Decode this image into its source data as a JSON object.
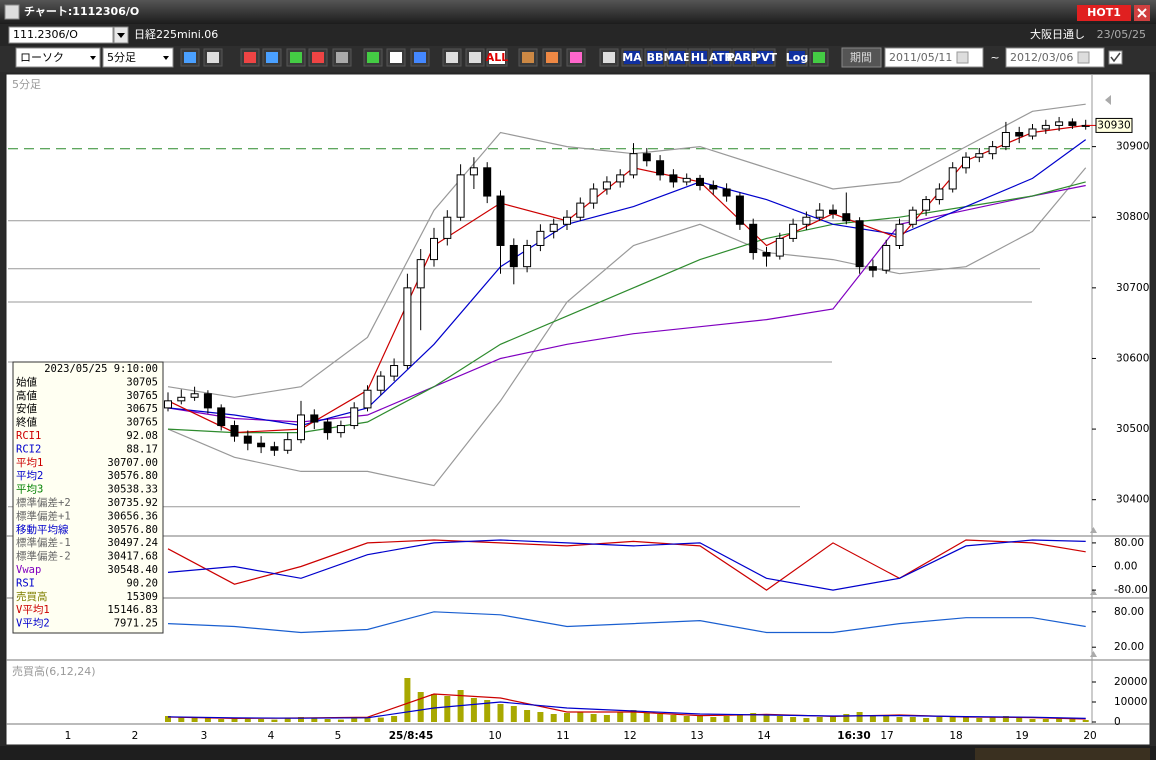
{
  "window": {
    "title": "チャート:1112306/O",
    "hot": "HOT1"
  },
  "toolbar": {
    "symbol": "111.2306/O",
    "instrument": "日経225mini.06",
    "session": "大阪日通し",
    "date": "23/05/25",
    "chart_type": "ローソク",
    "interval": "5分足",
    "buttons": [
      "ALL",
      "MA",
      "BB",
      "MAE",
      "HL",
      "ATR",
      "PARB",
      "PVT",
      "Log"
    ],
    "period": "期間",
    "from": "2011/05/11",
    "tilde": "~",
    "to": "2012/03/06"
  },
  "info_box": {
    "time": "2023/05/25 9:10:00",
    "rows": [
      {
        "label": "始値",
        "value": "30705",
        "color": "#000000"
      },
      {
        "label": "高値",
        "value": "30765",
        "color": "#000000"
      },
      {
        "label": "安値",
        "value": "30675",
        "color": "#000000"
      },
      {
        "label": "終値",
        "value": "30765",
        "color": "#000000"
      },
      {
        "label": "RCI1",
        "value": "92.08",
        "color": "#cc0000"
      },
      {
        "label": "RCI2",
        "value": "88.17",
        "color": "#0000cc"
      },
      {
        "label": "平均1",
        "value": "30707.00",
        "color": "#cc0000"
      },
      {
        "label": "平均2",
        "value": "30576.80",
        "color": "#0000cc"
      },
      {
        "label": "平均3",
        "value": "30538.33",
        "color": "#008000"
      },
      {
        "label": "標準偏差+2",
        "value": "30735.92",
        "color": "#666666"
      },
      {
        "label": "標準偏差+1",
        "value": "30656.36",
        "color": "#666666"
      },
      {
        "label": "移動平均線",
        "value": "30576.80",
        "color": "#0000cc"
      },
      {
        "label": "標準偏差-1",
        "value": "30497.24",
        "color": "#666666"
      },
      {
        "label": "標準偏差-2",
        "value": "30417.68",
        "color": "#666666"
      },
      {
        "label": "Vwap",
        "value": "30548.40",
        "color": "#8000c0"
      },
      {
        "label": "RSI",
        "value": "90.20",
        "color": "#0000cc"
      },
      {
        "label": "売買高",
        "value": "15309",
        "color": "#808000"
      },
      {
        "label": "V平均1",
        "value": "15146.83",
        "color": "#cc0000"
      },
      {
        "label": "V平均2",
        "value": "7971.25",
        "color": "#0000cc"
      }
    ]
  },
  "chart_data": {
    "type": "candlestick",
    "panel_label": "5分足",
    "ylim": [
      30350,
      31000
    ],
    "yticks": [
      30400,
      30500,
      30600,
      30700,
      30800,
      30900
    ],
    "last_price": 30930,
    "dashed_level": 30897,
    "levels": [
      30795,
      30727,
      30680,
      30595,
      30390
    ],
    "x_labels": [
      "1",
      "2",
      "3",
      "4",
      "5",
      "25/8:45",
      "10",
      "11",
      "12",
      "13",
      "14",
      "16:30",
      "17",
      "18",
      "19",
      "20"
    ],
    "candles": [
      [
        30530,
        30552,
        30525,
        30540
      ],
      [
        30540,
        30556,
        30535,
        30545
      ],
      [
        30545,
        30560,
        30540,
        30550
      ],
      [
        30550,
        30555,
        30522,
        30530
      ],
      [
        30530,
        30535,
        30498,
        30505
      ],
      [
        30505,
        30512,
        30482,
        30490
      ],
      [
        30490,
        30498,
        30470,
        30480
      ],
      [
        30480,
        30490,
        30466,
        30475
      ],
      [
        30475,
        30482,
        30462,
        30470
      ],
      [
        30470,
        30495,
        30465,
        30485
      ],
      [
        30485,
        30540,
        30480,
        30520
      ],
      [
        30520,
        30528,
        30500,
        30510
      ],
      [
        30510,
        30515,
        30485,
        30495
      ],
      [
        30495,
        30512,
        30488,
        30505
      ],
      [
        30505,
        30538,
        30500,
        30530
      ],
      [
        30530,
        30562,
        30525,
        30555
      ],
      [
        30555,
        30582,
        30548,
        30575
      ],
      [
        30575,
        30600,
        30568,
        30590
      ],
      [
        30590,
        30720,
        30585,
        30700
      ],
      [
        30700,
        30755,
        30640,
        30740
      ],
      [
        30740,
        30785,
        30730,
        30770
      ],
      [
        30770,
        30810,
        30760,
        30800
      ],
      [
        30800,
        30875,
        30795,
        30860
      ],
      [
        30860,
        30885,
        30840,
        30870
      ],
      [
        30870,
        30878,
        30820,
        30830
      ],
      [
        30830,
        30838,
        30720,
        30760
      ],
      [
        30760,
        30770,
        30705,
        30730
      ],
      [
        30730,
        30768,
        30722,
        30760
      ],
      [
        30760,
        30790,
        30752,
        30780
      ],
      [
        30780,
        30798,
        30770,
        30790
      ],
      [
        30790,
        30810,
        30782,
        30800
      ],
      [
        30800,
        30828,
        30795,
        30820
      ],
      [
        30820,
        30848,
        30812,
        30840
      ],
      [
        30840,
        30858,
        30832,
        30850
      ],
      [
        30850,
        30868,
        30842,
        30860
      ],
      [
        30860,
        30905,
        30855,
        30890
      ],
      [
        30890,
        30898,
        30872,
        30880
      ],
      [
        30880,
        30888,
        30852,
        30860
      ],
      [
        30860,
        30868,
        30842,
        30850
      ],
      [
        30850,
        30862,
        30845,
        30855
      ],
      [
        30855,
        30860,
        30838,
        30845
      ],
      [
        30845,
        30852,
        30832,
        30840
      ],
      [
        30840,
        30848,
        30822,
        30830
      ],
      [
        30830,
        30835,
        30782,
        30790
      ],
      [
        30790,
        30798,
        30740,
        30750
      ],
      [
        30750,
        30758,
        30730,
        30745
      ],
      [
        30745,
        30778,
        30740,
        30770
      ],
      [
        30770,
        30798,
        30765,
        30790
      ],
      [
        30790,
        30808,
        30782,
        30800
      ],
      [
        30800,
        30820,
        30795,
        30810
      ],
      [
        30810,
        30818,
        30798,
        30805
      ],
      [
        30805,
        30835,
        30790,
        30795
      ],
      [
        30795,
        30800,
        30720,
        30730
      ],
      [
        30730,
        30740,
        30715,
        30725
      ],
      [
        30725,
        30768,
        30720,
        30760
      ],
      [
        30760,
        30798,
        30755,
        30790
      ],
      [
        30790,
        30815,
        30785,
        30810
      ],
      [
        30810,
        30830,
        30802,
        30825
      ],
      [
        30825,
        30848,
        30818,
        30840
      ],
      [
        30840,
        30878,
        30835,
        30870
      ],
      [
        30870,
        30892,
        30862,
        30885
      ],
      [
        30885,
        30898,
        30878,
        30890
      ],
      [
        30890,
        30908,
        30882,
        30900
      ],
      [
        30900,
        30935,
        30895,
        30920
      ],
      [
        30920,
        30928,
        30905,
        30915
      ],
      [
        30915,
        30932,
        30910,
        30925
      ],
      [
        30925,
        30938,
        30918,
        30930
      ],
      [
        30930,
        30942,
        30922,
        30935
      ],
      [
        30935,
        30940,
        30925,
        30930
      ],
      [
        30930,
        30938,
        30924,
        30930
      ]
    ],
    "x": [
      0,
      5,
      10,
      15,
      20,
      25,
      30,
      35,
      40,
      45,
      50,
      55,
      60,
      65,
      69
    ],
    "lines": [
      {
        "color": "#999999",
        "values": [
          30560,
          30545,
          30560,
          30630,
          30810,
          30920,
          30900,
          30890,
          30900,
          30870,
          30840,
          30850,
          30900,
          30950,
          30960
        ]
      },
      {
        "color": "#999999",
        "values": [
          30500,
          30460,
          30440,
          30440,
          30420,
          30540,
          30680,
          30760,
          30790,
          30750,
          30740,
          30720,
          30730,
          30780,
          30870
        ]
      },
      {
        "color": "#8000c0",
        "values": [
          30530,
          30515,
          30510,
          30520,
          30560,
          30600,
          30620,
          30635,
          30645,
          30655,
          30670,
          30790,
          30810,
          30830,
          30845
        ]
      },
      {
        "color": "#2e8b2e",
        "values": [
          30500,
          30495,
          30495,
          30510,
          30560,
          30620,
          30660,
          30700,
          30740,
          30770,
          30790,
          30800,
          30815,
          30830,
          30850
        ]
      },
      {
        "color": "#0000cc",
        "values": [
          30530,
          30520,
          30505,
          30530,
          30620,
          30730,
          30790,
          30815,
          30850,
          30825,
          30790,
          30775,
          30815,
          30855,
          30910
        ]
      },
      {
        "color": "#cc0000",
        "values": [
          30540,
          30495,
          30500,
          30555,
          30760,
          30820,
          30795,
          30870,
          30850,
          30760,
          30805,
          30770,
          30880,
          30920,
          30930
        ]
      }
    ],
    "rci": {
      "ylim": [
        -100,
        100
      ],
      "yticks": [
        {
          "value": 80,
          "label": "80.00"
        },
        {
          "value": 0,
          "label": "0.00"
        },
        {
          "value": -80,
          "label": "-80.00"
        }
      ],
      "series": [
        {
          "color": "#cc0000",
          "values": [
            60,
            -60,
            0,
            80,
            90,
            80,
            70,
            85,
            70,
            -80,
            80,
            -40,
            90,
            80,
            50
          ]
        },
        {
          "color": "#0000cc",
          "values": [
            -20,
            0,
            -40,
            40,
            80,
            90,
            80,
            70,
            80,
            -40,
            -80,
            -40,
            70,
            90,
            85
          ]
        }
      ]
    },
    "rsi": {
      "ylim": [
        0,
        100
      ],
      "yticks": [
        {
          "value": 80,
          "label": "80.00"
        },
        {
          "value": 20,
          "label": "20.00"
        }
      ],
      "series": [
        {
          "color": "#1a5fd0",
          "values": [
            60,
            55,
            45,
            50,
            80,
            75,
            55,
            60,
            65,
            45,
            45,
            60,
            70,
            70,
            55
          ]
        }
      ]
    },
    "volume": {
      "label": "売買高(6,12,24)",
      "ylim": [
        0,
        30000
      ],
      "yticks": [
        0,
        10000,
        20000
      ],
      "color": "#a8a800",
      "values": [
        3000,
        2500,
        2000,
        2000,
        1500,
        1800,
        2000,
        1500,
        1200,
        2000,
        2500,
        1800,
        1500,
        1200,
        2000,
        2500,
        2200,
        3000,
        22000,
        15000,
        14000,
        13000,
        16000,
        12000,
        11000,
        9000,
        8000,
        6000,
        5000,
        4000,
        4500,
        5000,
        4000,
        3500,
        5000,
        6000,
        4500,
        4000,
        3500,
        3000,
        3000,
        2500,
        3000,
        4000,
        4500,
        3500,
        3000,
        2500,
        2000,
        2500,
        3000,
        4000,
        5000,
        3500,
        3000,
        2500,
        2500,
        2000,
        2500,
        3000,
        2500,
        2000,
        2500,
        3000,
        2000,
        1500,
        1500,
        2000,
        1500,
        1000
      ],
      "lines": [
        {
          "color": "#cc0000",
          "values": [
            2500,
            1800,
            2000,
            2400,
            14000,
            12000,
            5000,
            5000,
            3200,
            3800,
            2800,
            3500,
            2500,
            2200,
            1500
          ]
        },
        {
          "color": "#0000cc",
          "values": [
            2600,
            2100,
            1900,
            2100,
            7000,
            10000,
            7000,
            5500,
            4000,
            3500,
            3000,
            3200,
            2700,
            2400,
            1800
          ]
        }
      ]
    }
  }
}
